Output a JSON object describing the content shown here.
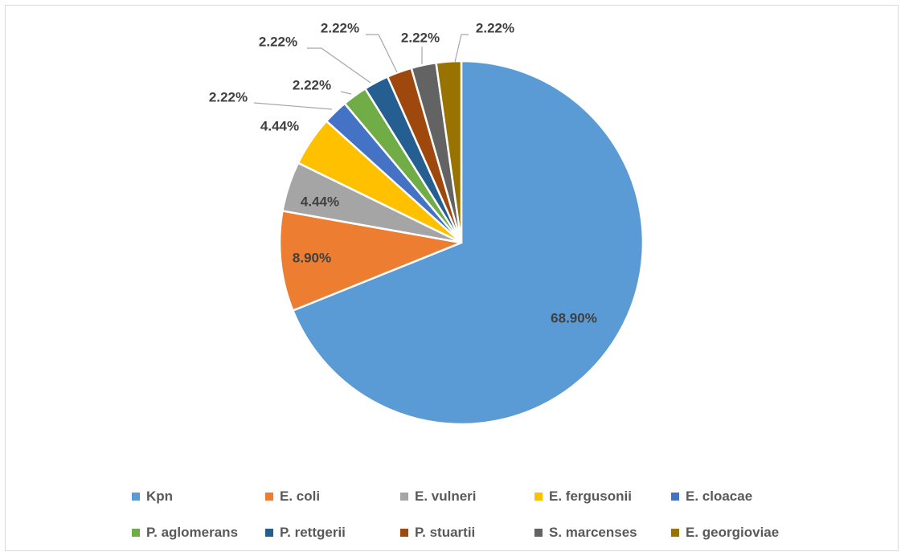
{
  "chart_data": {
    "type": "pie",
    "title": "",
    "categories": [
      "Kpn",
      "E. coli",
      "E. vulneri",
      "E. fergusonii",
      "E. cloacae",
      "P. aglomerans",
      "P. rettgerii",
      "P. stuartii",
      "S. marcenses",
      "E. georgioviae"
    ],
    "values": [
      68.9,
      8.9,
      4.44,
      4.44,
      2.22,
      2.22,
      2.22,
      2.22,
      2.22,
      2.22
    ],
    "data_labels": [
      "68.90%",
      "8.90%",
      "4.44%",
      "4.44%",
      "2.22%",
      "2.22%",
      "2.22%",
      "2.22%",
      "2.22%",
      "2.22%"
    ],
    "colors": [
      "#5b9bd5",
      "#ed7d31",
      "#a5a5a5",
      "#ffc000",
      "#4472c4",
      "#70ad47",
      "#255e91",
      "#9e480e",
      "#636363",
      "#997300"
    ],
    "start_angle_deg": 0,
    "direction": "clockwise",
    "legend_position": "bottom"
  }
}
